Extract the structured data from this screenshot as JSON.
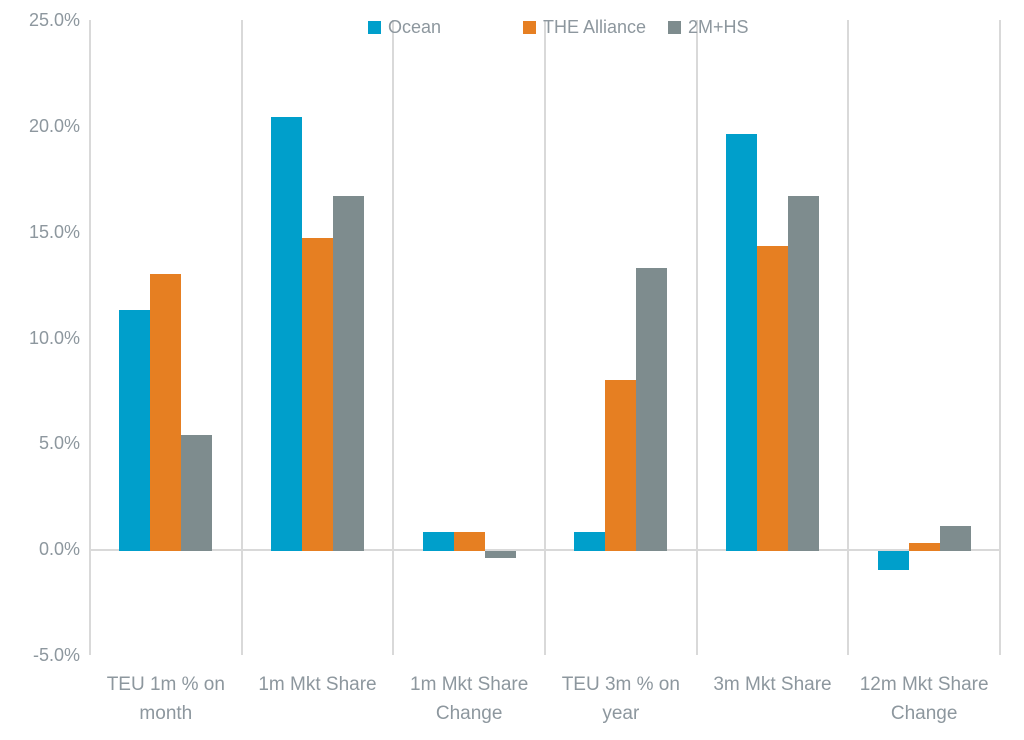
{
  "chart_data": {
    "type": "bar",
    "title": "",
    "xlabel": "",
    "ylabel": "",
    "categories": [
      "TEU 1m % on month",
      "1m Mkt Share",
      "1m Mkt Share Change",
      "TEU 3m % on year",
      "3m Mkt Share",
      "12m Mkt Share Change"
    ],
    "series": [
      {
        "name": "Ocean",
        "color": "#009FCB",
        "values": [
          11.3,
          20.4,
          0.8,
          0.8,
          19.6,
          -0.9
        ]
      },
      {
        "name": "THE Alliance",
        "color": "#E67F22",
        "values": [
          13.0,
          14.7,
          0.8,
          8.0,
          14.3,
          0.3
        ]
      },
      {
        "name": "2M+HS",
        "color": "#7E8C8E",
        "values": [
          5.4,
          16.7,
          -0.3,
          13.3,
          16.7,
          1.1
        ]
      }
    ],
    "ylim": [
      -5,
      25
    ],
    "y_ticks": [
      {
        "value": 25,
        "label": "25.0%"
      },
      {
        "value": 20,
        "label": "20.0%"
      },
      {
        "value": 15,
        "label": "15.0%"
      },
      {
        "value": 10,
        "label": "10.0%"
      },
      {
        "value": 5,
        "label": "5.0%"
      },
      {
        "value": 0,
        "label": "0.0%"
      },
      {
        "value": -5,
        "label": "-5.0%"
      }
    ],
    "legend_position": "top",
    "gridlines": "vertical category separators and zero line only"
  },
  "styles": {
    "text_color": "#8D979E",
    "gridline_color": "#D9D9D9",
    "background": "#FFFFFF"
  }
}
